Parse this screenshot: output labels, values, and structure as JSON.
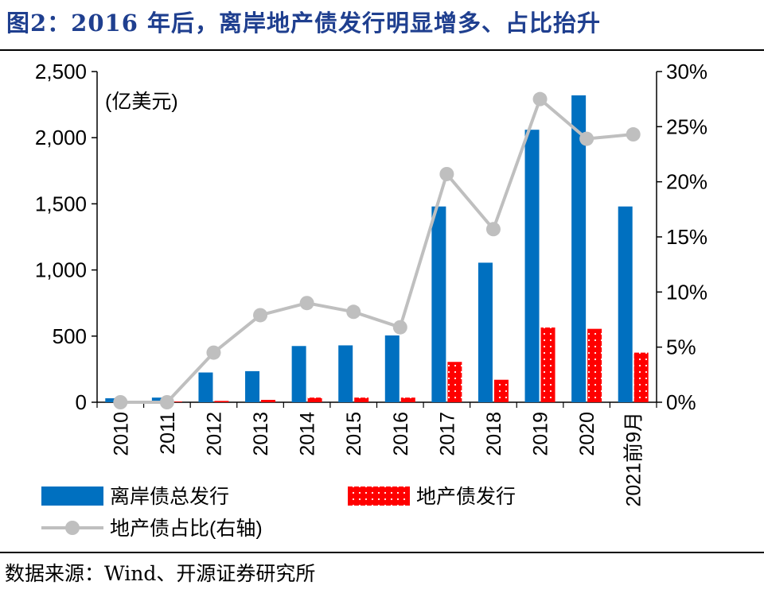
{
  "header": {
    "title": "图2：2016 年后，离岸地产债发行明显增多、占比抬升"
  },
  "footer": {
    "source": "数据来源：Wind、开源证券研究所"
  },
  "chart_data": {
    "type": "bar+line",
    "unit_label": "(亿美元)",
    "categories": [
      "2010",
      "2011",
      "2012",
      "2013",
      "2014",
      "2015",
      "2016",
      "2017",
      "2018",
      "2019",
      "2020",
      "2021前9月"
    ],
    "series": [
      {
        "name": "离岸债总发行",
        "type": "bar",
        "axis": "left",
        "color": "#0070c0",
        "values": [
          30,
          35,
          225,
          235,
          425,
          430,
          505,
          1480,
          1055,
          2060,
          2320,
          1480
        ]
      },
      {
        "name": "地产债发行",
        "type": "bar",
        "axis": "left",
        "color": "#ff0000",
        "pattern": "dotted",
        "values": [
          3,
          5,
          10,
          18,
          35,
          35,
          35,
          305,
          170,
          565,
          555,
          375
        ]
      },
      {
        "name": "地产债占比(右轴)",
        "type": "line",
        "axis": "right",
        "color": "#bfbfbf",
        "values": [
          0.0,
          0.0,
          4.5,
          7.9,
          9.0,
          8.2,
          6.8,
          20.7,
          15.7,
          27.5,
          23.9,
          24.3
        ]
      }
    ],
    "y_left": {
      "min": 0,
      "max": 2500,
      "ticks": [
        "0",
        "500",
        "1,000",
        "1,500",
        "2,000",
        "2,500"
      ]
    },
    "y_right": {
      "min": 0,
      "max": 30,
      "ticks": [
        "0%",
        "5%",
        "10%",
        "15%",
        "20%",
        "25%",
        "30%"
      ]
    },
    "legend": {
      "placement": "bottom-left"
    },
    "grid": false
  }
}
